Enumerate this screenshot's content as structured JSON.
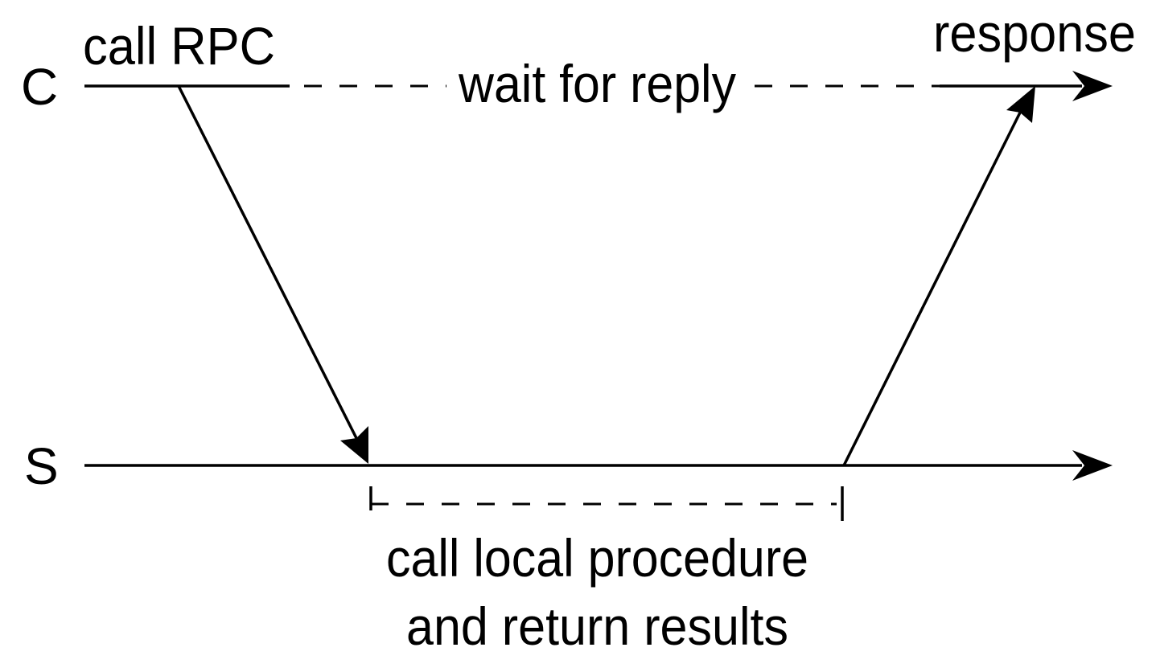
{
  "diagram": {
    "client_label": "C",
    "server_label": "S",
    "call_label": "call RPC",
    "response_label": "response",
    "wait_label": "wait for reply",
    "server_work_label_line1": "call local procedure",
    "server_work_label_line2": "and return results"
  },
  "colors": {
    "line": "#000000",
    "background": "#ffffff"
  }
}
